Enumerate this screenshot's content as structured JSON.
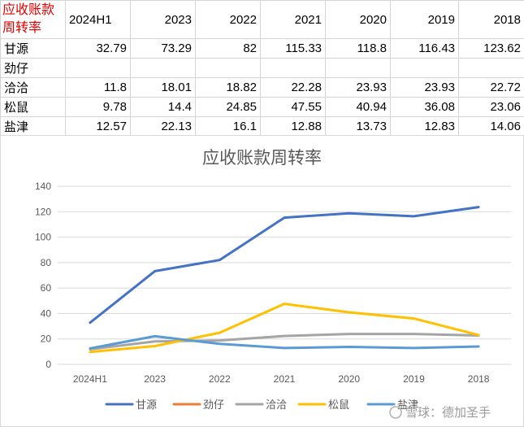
{
  "table": {
    "header_label": "应收账款周转率",
    "years": [
      "2024H1",
      "2023",
      "2022",
      "2021",
      "2020",
      "2019",
      "2018"
    ],
    "rows": [
      {
        "name": "甘源",
        "values": [
          "32.79",
          "73.29",
          "82",
          "115.33",
          "118.8",
          "116.43",
          "123.62"
        ]
      },
      {
        "name": "劲仔",
        "values": [
          "",
          "",
          "",
          "",
          "",
          "",
          ""
        ]
      },
      {
        "name": "洽洽",
        "values": [
          "11.8",
          "18.01",
          "18.82",
          "22.28",
          "23.93",
          "23.93",
          "22.72"
        ]
      },
      {
        "name": "松鼠",
        "values": [
          "9.78",
          "14.4",
          "24.85",
          "47.55",
          "40.94",
          "36.08",
          "23.06"
        ]
      },
      {
        "name": "盐津",
        "values": [
          "12.57",
          "22.13",
          "16.1",
          "12.88",
          "13.73",
          "12.83",
          "14.06"
        ]
      }
    ]
  },
  "chart_data": {
    "type": "line",
    "title": "应收账款周转率",
    "categories": [
      "2024H1",
      "2023",
      "2022",
      "2021",
      "2020",
      "2019",
      "2018"
    ],
    "ylim": [
      0,
      140
    ],
    "yticks": [
      "0",
      "20",
      "40",
      "60",
      "80",
      "100",
      "120",
      "140"
    ],
    "grid": true,
    "legend_position": "bottom",
    "series": [
      {
        "name": "甘源",
        "color": "#4472C4",
        "values": [
          32.79,
          73.29,
          82,
          115.33,
          118.8,
          116.43,
          123.62
        ]
      },
      {
        "name": "劲仔",
        "color": "#ED7D31",
        "values": [
          null,
          null,
          null,
          null,
          null,
          null,
          null
        ]
      },
      {
        "name": "洽洽",
        "color": "#A5A5A5",
        "values": [
          11.8,
          18.01,
          18.82,
          22.28,
          23.93,
          23.93,
          22.72
        ]
      },
      {
        "name": "松鼠",
        "color": "#FFC000",
        "values": [
          9.78,
          14.4,
          24.85,
          47.55,
          40.94,
          36.08,
          23.06
        ]
      },
      {
        "name": "盐津",
        "color": "#5B9BD5",
        "values": [
          12.57,
          22.13,
          16.1,
          12.88,
          13.73,
          12.83,
          14.06
        ]
      }
    ]
  },
  "watermark": "雪球：德加圣手"
}
